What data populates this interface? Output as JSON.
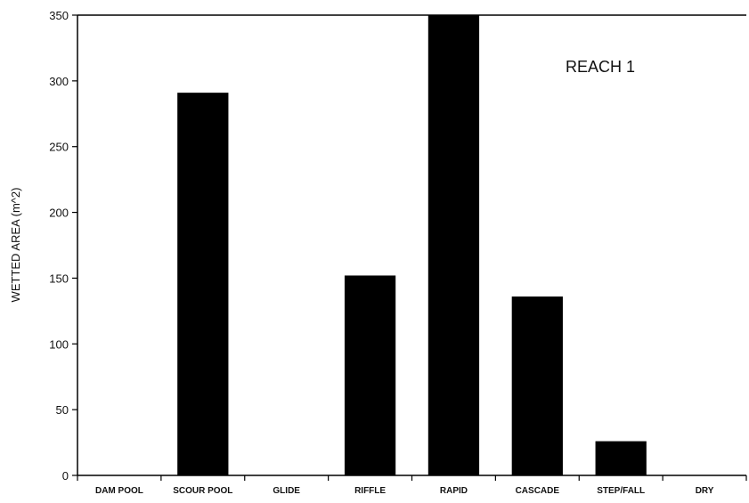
{
  "chart_data": {
    "type": "bar",
    "title": "",
    "annotation": "REACH 1",
    "xlabel": "",
    "ylabel": "WETTED AREA (m^2)",
    "ylim": [
      0,
      350
    ],
    "yticks": [
      0,
      50,
      100,
      150,
      200,
      250,
      300,
      350
    ],
    "categories": [
      "DAM POOL",
      "SCOUR POOL",
      "GLIDE",
      "RIFFLE",
      "RAPID",
      "CASCADE",
      "STEP/FALL",
      "DRY"
    ],
    "values": [
      0,
      291,
      0,
      152,
      350,
      136,
      26,
      0
    ],
    "bar_color": "#000000",
    "grid": false,
    "legend": "none"
  }
}
